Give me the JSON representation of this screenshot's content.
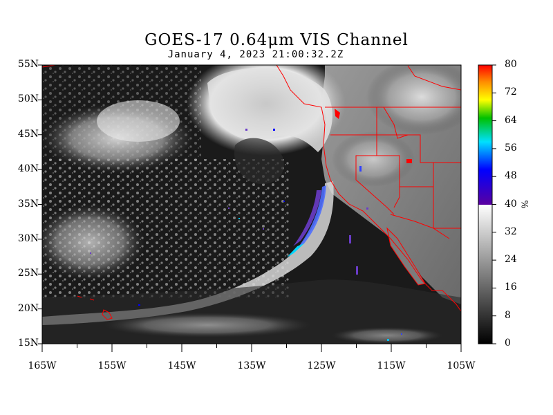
{
  "header": {
    "title": "GOES-17  0.64μm VIS Channel",
    "subtitle": "January  4,  2023 21:00:32.2Z"
  },
  "map": {
    "lat_labels": [
      "55N",
      "50N",
      "45N",
      "40N",
      "35N",
      "30N",
      "25N",
      "20N",
      "15N"
    ],
    "lon_labels": [
      "165W",
      "155W",
      "145W",
      "135W",
      "125W",
      "115W",
      "105W"
    ],
    "lat_range": [
      15,
      55
    ],
    "lon_range": [
      -165,
      -105
    ],
    "border_color": "#ff0000",
    "features": [
      "satellite-cloud-imagery",
      "extratropical-cyclone",
      "atmospheric-river",
      "us-state-borders",
      "coastlines"
    ]
  },
  "colorbar": {
    "ticks": [
      "80",
      "72",
      "64",
      "56",
      "48",
      "40",
      "32",
      "24",
      "16",
      "8",
      "0"
    ],
    "unit": "%",
    "range": [
      0,
      80
    ],
    "gray_range": [
      0,
      40
    ],
    "color_range": [
      40,
      80
    ]
  }
}
